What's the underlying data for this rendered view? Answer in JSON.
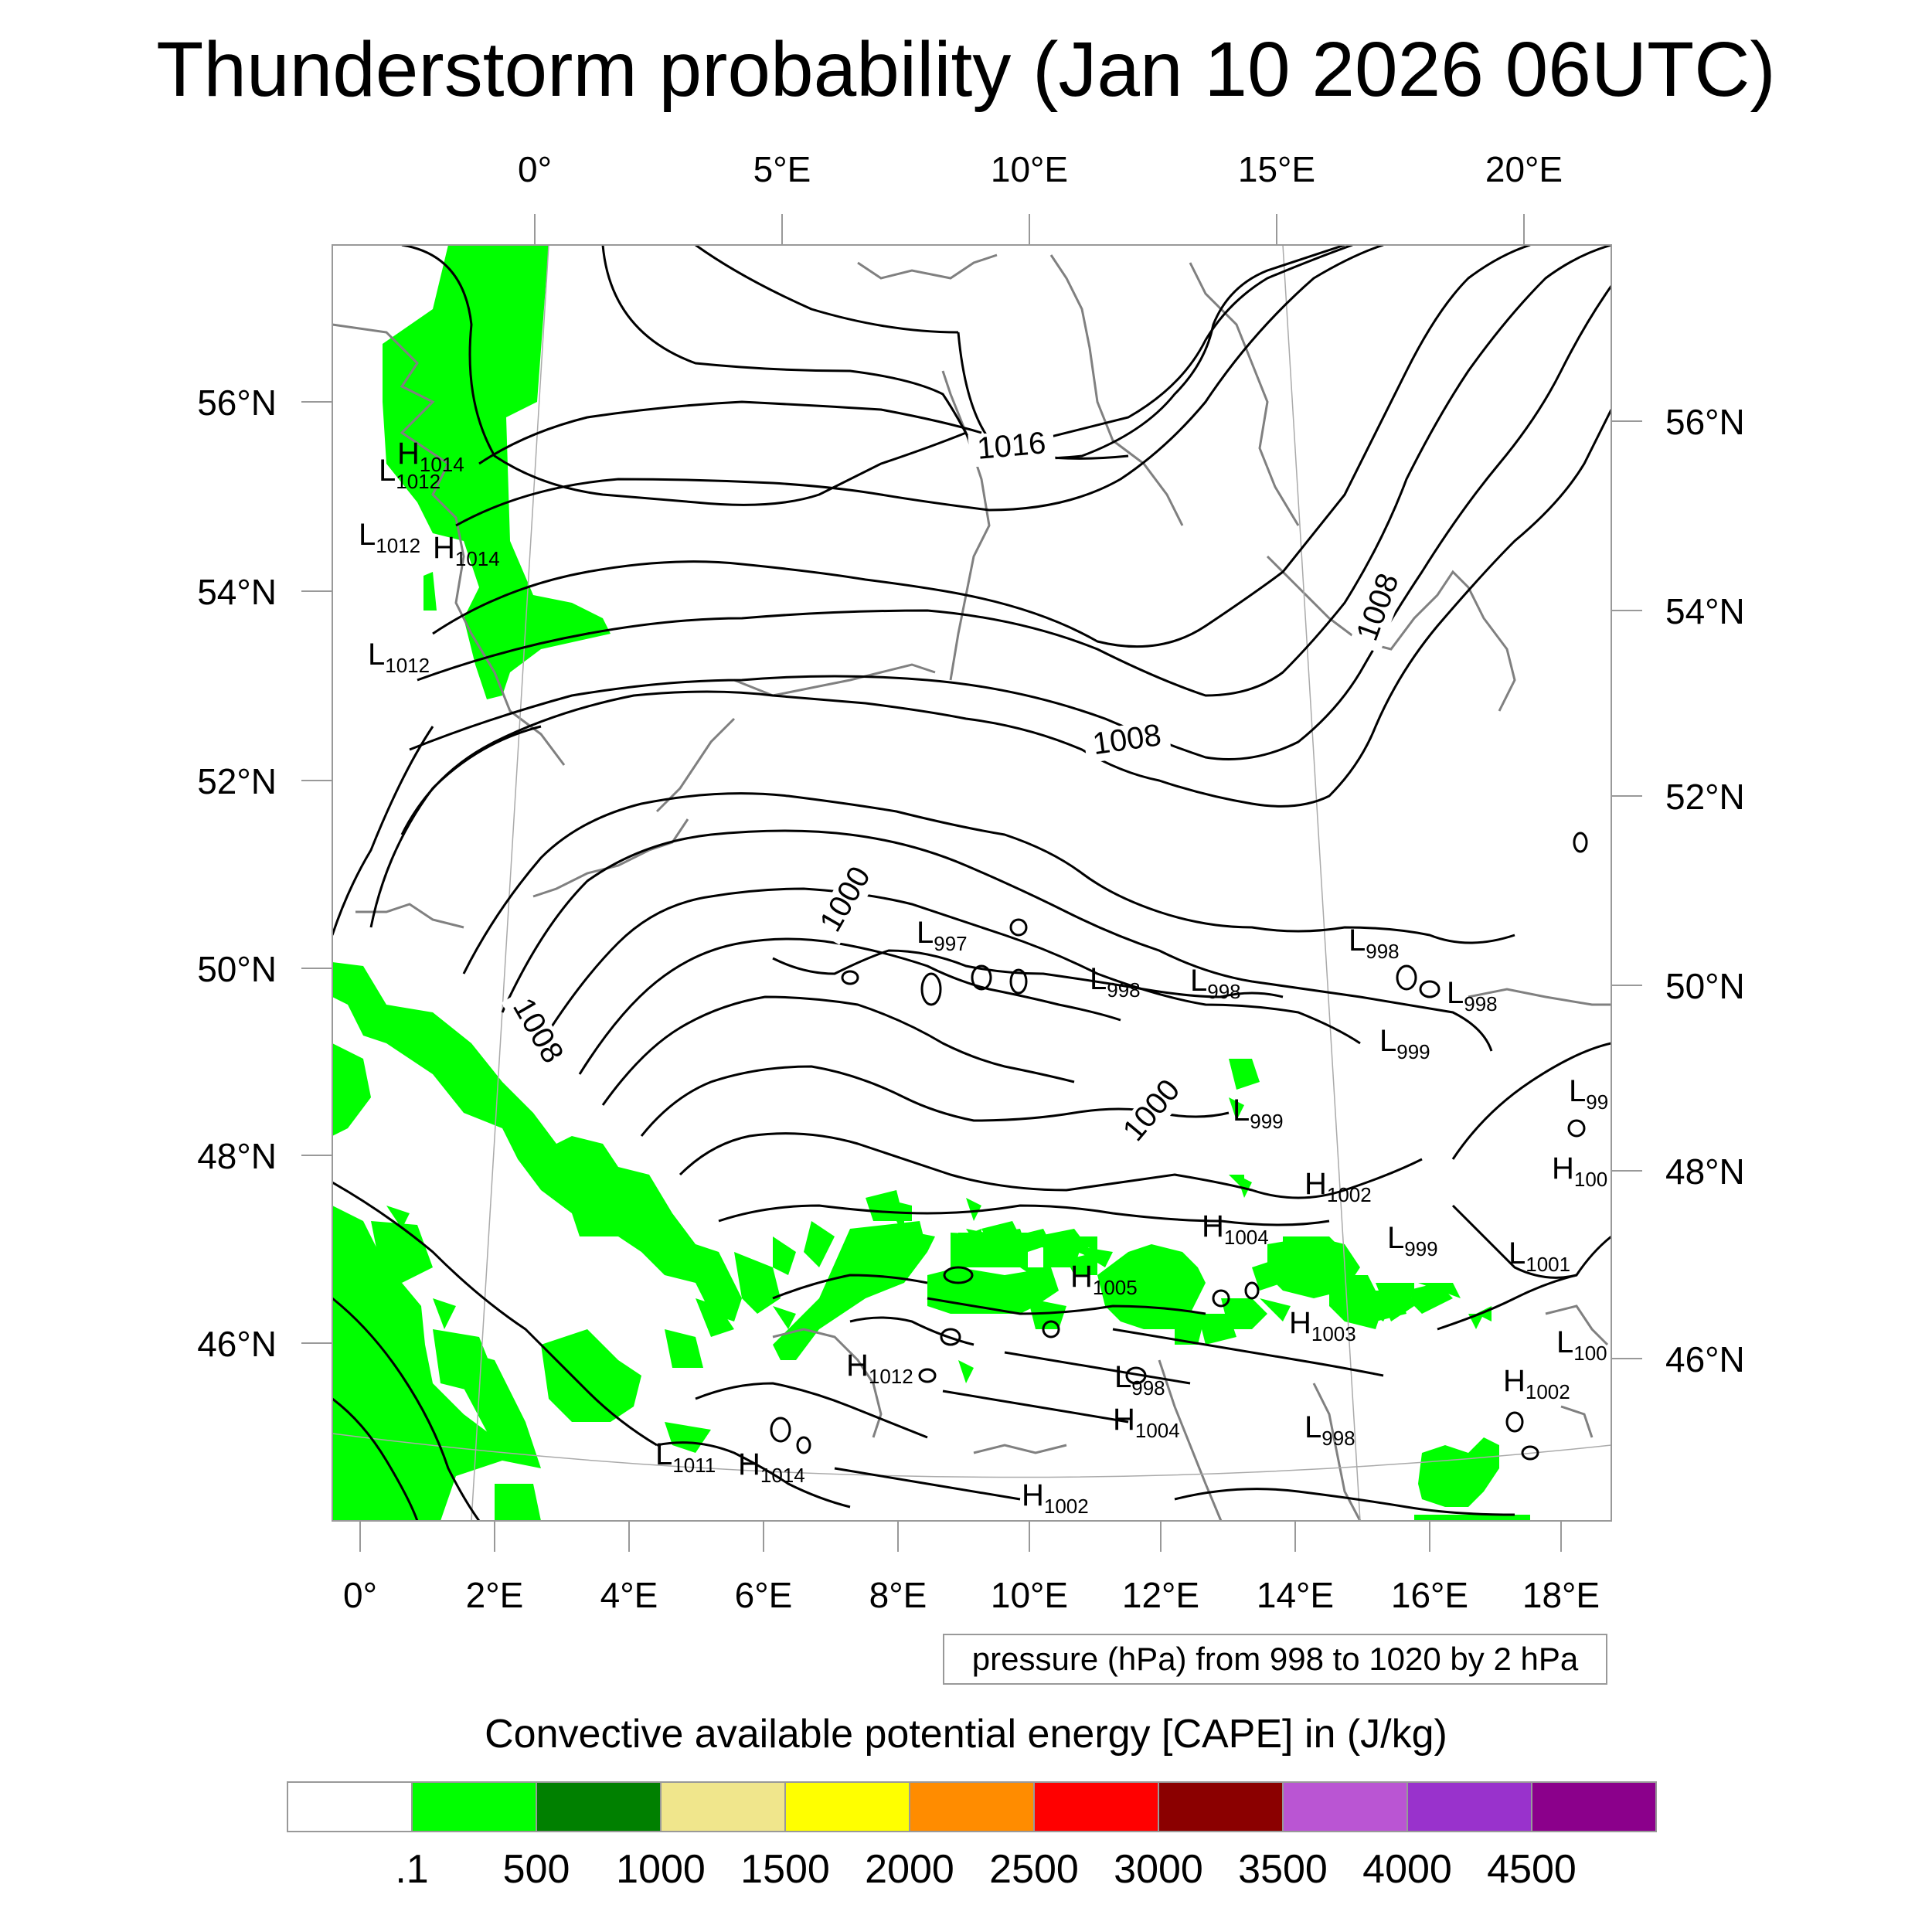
{
  "title": "Thunderstorm probability (Jan 10 2026 06UTC)",
  "top_lon_labels": [
    "0°",
    "5°E",
    "10°E",
    "15°E",
    "20°E"
  ],
  "bottom_lon_labels": [
    "0°",
    "2°E",
    "4°E",
    "6°E",
    "8°E",
    "10°E",
    "12°E",
    "14°E",
    "16°E",
    "18°E"
  ],
  "left_lat_labels": [
    "56°N",
    "54°N",
    "52°N",
    "50°N",
    "48°N",
    "46°N"
  ],
  "right_lat_labels": [
    "56°N",
    "54°N",
    "52°N",
    "50°N",
    "48°N",
    "46°N"
  ],
  "isobar_labels": [
    {
      "text": "1016"
    },
    {
      "text": "1008"
    },
    {
      "text": "1008"
    },
    {
      "text": "1008"
    },
    {
      "text": "1000"
    },
    {
      "text": "1000"
    }
  ],
  "pressure_centers": [
    {
      "type": "H",
      "value": "1014"
    },
    {
      "type": "L",
      "value": "1012"
    },
    {
      "type": "L",
      "value": "1012"
    },
    {
      "type": "H",
      "value": "1014"
    },
    {
      "type": "L",
      "value": "1012"
    },
    {
      "type": "L",
      "value": "997"
    },
    {
      "type": "L",
      "value": "998"
    },
    {
      "type": "L",
      "value": "998"
    },
    {
      "type": "L",
      "value": "998"
    },
    {
      "type": "L",
      "value": "998"
    },
    {
      "type": "L",
      "value": "999"
    },
    {
      "type": "L",
      "value": "99"
    },
    {
      "type": "L",
      "value": "999"
    },
    {
      "type": "H",
      "value": "1002"
    },
    {
      "type": "H",
      "value": "100"
    },
    {
      "type": "H",
      "value": "1004"
    },
    {
      "type": "L",
      "value": "999"
    },
    {
      "type": "L",
      "value": "1001"
    },
    {
      "type": "H",
      "value": "1005"
    },
    {
      "type": "H",
      "value": "1003"
    },
    {
      "type": "L",
      "value": "100"
    },
    {
      "type": "H",
      "value": "1012"
    },
    {
      "type": "L",
      "value": "998"
    },
    {
      "type": "H",
      "value": "1002"
    },
    {
      "type": "H",
      "value": "1004"
    },
    {
      "type": "L",
      "value": "998"
    },
    {
      "type": "L",
      "value": "1011"
    },
    {
      "type": "H",
      "value": "1014"
    },
    {
      "type": "H",
      "value": "1002"
    }
  ],
  "info_box": "pressure (hPa) from 998 to 1020 by 2 hPa",
  "colorbar": {
    "title": "Convective available potential energy [CAPE] in (J/kg)",
    "colors": [
      "#ffffff",
      "#00ff00",
      "#008000",
      "#f0e68c",
      "#ffff00",
      "#ff8c00",
      "#ff0000",
      "#8b0000",
      "#ba55d3",
      "#9932cc",
      "#8b008b"
    ],
    "labels": [
      ".1",
      "500",
      "1000",
      "1500",
      "2000",
      "2500",
      "3000",
      "3500",
      "4000",
      "4500"
    ]
  },
  "colors": {
    "cape_low": "#00ff00",
    "coastline": "#808080",
    "isobar": "#000000",
    "grid": "#aaaaaa"
  }
}
